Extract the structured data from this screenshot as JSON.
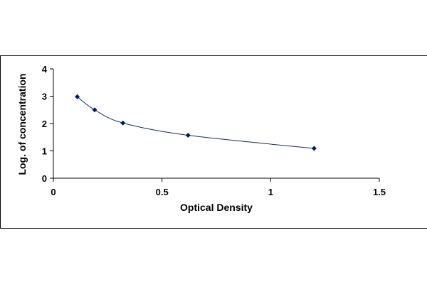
{
  "chart_data": {
    "type": "scatter",
    "title": "",
    "xlabel": "Optical Density",
    "ylabel": "Log. of concentration",
    "xlim": [
      0,
      1.5
    ],
    "ylim": [
      0,
      4
    ],
    "x_ticks": [
      0,
      0.5,
      1,
      1.5
    ],
    "x_tick_labels": [
      "0",
      "0.5",
      "1",
      "1.5"
    ],
    "y_ticks": [
      0,
      1,
      2,
      3,
      4
    ],
    "y_tick_labels": [
      "0",
      "1",
      "2",
      "3",
      "4"
    ],
    "grid": false,
    "legend": "none",
    "trendline": "smooth curve",
    "series": [
      {
        "x": [
          0.11,
          0.19,
          0.32,
          0.62,
          1.2
        ],
        "y": [
          2.98,
          2.5,
          2.02,
          1.57,
          1.09
        ]
      }
    ],
    "colors": {
      "marker": "#001a66",
      "line": "#1a2a6c",
      "axis": "#000000"
    }
  }
}
